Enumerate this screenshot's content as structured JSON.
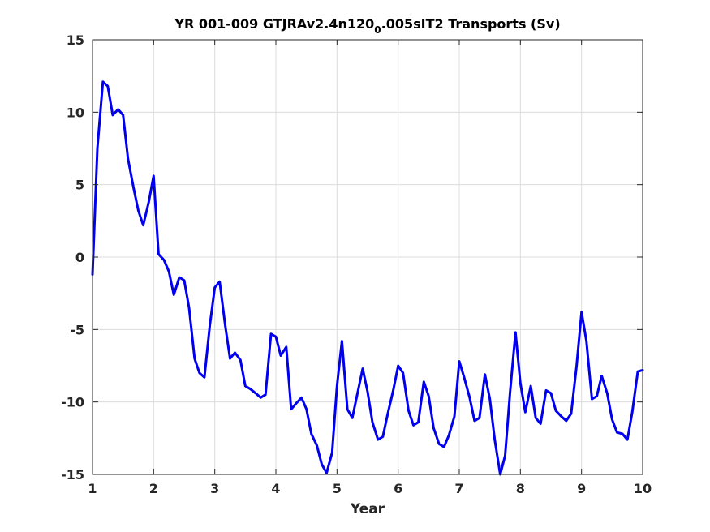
{
  "chart_data": {
    "type": "line",
    "title": {
      "main": "YR 001-009 GTJRAv2.4n120",
      "subscript": "0",
      "rest": ".005sIT2 Transports (Sv)"
    },
    "xlabel": "Year",
    "ylabel": "",
    "xlim": [
      1,
      10
    ],
    "ylim": [
      -15,
      15
    ],
    "xticks": [
      1,
      2,
      3,
      4,
      5,
      6,
      7,
      8,
      9,
      10
    ],
    "yticks": [
      -15,
      -10,
      -5,
      0,
      5,
      10,
      15
    ],
    "grid": true,
    "series": [
      {
        "color": "#0000ee",
        "x": [
          1.0,
          1.08,
          1.17,
          1.25,
          1.33,
          1.42,
          1.5,
          1.58,
          1.67,
          1.75,
          1.83,
          1.92,
          2.0,
          2.08,
          2.17,
          2.25,
          2.33,
          2.42,
          2.5,
          2.58,
          2.67,
          2.75,
          2.83,
          2.92,
          3.0,
          3.08,
          3.17,
          3.25,
          3.33,
          3.42,
          3.5,
          3.58,
          3.67,
          3.75,
          3.83,
          3.92,
          4.0,
          4.08,
          4.17,
          4.25,
          4.33,
          4.42,
          4.5,
          4.58,
          4.67,
          4.75,
          4.83,
          4.92,
          5.0,
          5.08,
          5.17,
          5.25,
          5.33,
          5.42,
          5.5,
          5.58,
          5.67,
          5.75,
          5.83,
          5.92,
          6.0,
          6.08,
          6.17,
          6.25,
          6.33,
          6.42,
          6.5,
          6.58,
          6.67,
          6.75,
          6.83,
          6.92,
          7.0,
          7.08,
          7.17,
          7.25,
          7.33,
          7.42,
          7.5,
          7.58,
          7.67,
          7.75,
          7.83,
          7.92,
          8.0,
          8.08,
          8.17,
          8.25,
          8.33,
          8.42,
          8.5,
          8.58,
          8.67,
          8.75,
          8.83,
          8.92,
          9.0,
          9.08,
          9.17,
          9.25,
          9.33,
          9.42,
          9.5,
          9.58,
          9.67,
          9.75,
          9.83,
          9.92,
          10.0
        ],
        "values": [
          -1.2,
          7.5,
          12.1,
          11.8,
          9.8,
          10.2,
          9.8,
          6.8,
          4.8,
          3.2,
          2.2,
          3.8,
          5.6,
          0.2,
          -0.2,
          -1.0,
          -2.6,
          -1.4,
          -1.6,
          -3.5,
          -7.0,
          -8.0,
          -8.3,
          -4.7,
          -2.1,
          -1.7,
          -4.7,
          -7.0,
          -6.6,
          -7.1,
          -8.9,
          -9.1,
          -9.4,
          -9.7,
          -9.5,
          -5.3,
          -5.5,
          -6.8,
          -6.2,
          -10.5,
          -10.1,
          -9.7,
          -10.5,
          -12.2,
          -13.0,
          -14.3,
          -14.9,
          -13.5,
          -8.9,
          -5.8,
          -10.5,
          -11.1,
          -9.5,
          -7.7,
          -9.3,
          -11.4,
          -12.6,
          -12.4,
          -10.8,
          -9.2,
          -7.5,
          -8.0,
          -10.6,
          -11.6,
          -11.4,
          -8.6,
          -9.6,
          -11.8,
          -12.9,
          -13.1,
          -12.3,
          -11.0,
          -7.2,
          -8.3,
          -9.7,
          -11.3,
          -11.1,
          -8.1,
          -9.8,
          -12.6,
          -15.0,
          -13.7,
          -9.4,
          -5.2,
          -8.7,
          -10.7,
          -8.9,
          -11.1,
          -11.5,
          -9.2,
          -9.4,
          -10.6,
          -11.0,
          -11.3,
          -10.8,
          -7.5,
          -3.8,
          -5.8,
          -9.8,
          -9.6,
          -8.2,
          -9.4,
          -11.2,
          -12.1,
          -12.2,
          -12.6,
          -10.7,
          -7.9,
          -7.8
        ]
      }
    ]
  }
}
